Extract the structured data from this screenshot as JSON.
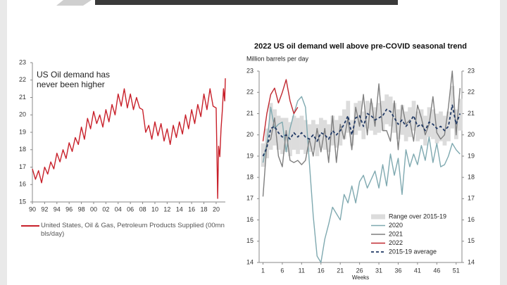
{
  "chart_data": [
    {
      "type": "line",
      "annotation": "US Oil demand has never been higher",
      "x": [
        1990,
        1990.5,
        1991,
        1991.5,
        1992,
        1992.5,
        1993,
        1993.5,
        1994,
        1994.5,
        1995,
        1995.5,
        1996,
        1996.5,
        1997,
        1997.5,
        1998,
        1998.5,
        1999,
        1999.5,
        2000,
        2000.5,
        2001,
        2001.5,
        2002,
        2002.5,
        2003,
        2003.5,
        2004,
        2004.5,
        2005,
        2005.5,
        2006,
        2006.5,
        2007,
        2007.5,
        2008,
        2008.5,
        2009,
        2009.5,
        2010,
        2010.5,
        2011,
        2011.5,
        2012,
        2012.5,
        2013,
        2013.5,
        2014,
        2014.5,
        2015,
        2015.5,
        2016,
        2016.5,
        2017,
        2017.5,
        2018,
        2018.5,
        2019,
        2019.5,
        2020,
        2020.25,
        2020.4,
        2020.6,
        2020.8,
        2021,
        2021.2,
        2021.4,
        2021.5
      ],
      "series": [
        {
          "name": "United States, Oil & Gas, Petroleum Products Supplied (00mn bls/day)",
          "color": "#c8202a",
          "values": [
            16.9,
            16.3,
            16.8,
            16.1,
            17.0,
            16.6,
            17.3,
            16.9,
            17.8,
            17.3,
            18.0,
            17.5,
            18.4,
            17.9,
            18.7,
            18.3,
            19.3,
            18.6,
            19.8,
            19.2,
            20.2,
            19.5,
            20.0,
            19.3,
            20.3,
            19.6,
            20.6,
            20.0,
            21.2,
            20.5,
            21.5,
            20.4,
            21.2,
            20.3,
            21.0,
            20.4,
            20.3,
            19.0,
            19.4,
            18.6,
            19.6,
            18.8,
            19.5,
            18.5,
            19.2,
            18.3,
            19.4,
            18.7,
            19.6,
            18.9,
            20.0,
            19.2,
            20.3,
            19.5,
            20.6,
            19.9,
            21.2,
            20.3,
            21.5,
            20.5,
            20.4,
            15.2,
            18.2,
            17.6,
            19.2,
            20.2,
            21.5,
            20.8,
            22.1
          ]
        }
      ],
      "xlim": [
        1990,
        2021.5
      ],
      "xticks": [
        {
          "value": 1990,
          "label": "90"
        },
        {
          "value": 1992,
          "label": "92"
        },
        {
          "value": 1994,
          "label": "94"
        },
        {
          "value": 1996,
          "label": "96"
        },
        {
          "value": 1998,
          "label": "98"
        },
        {
          "value": 2000,
          "label": "00"
        },
        {
          "value": 2002,
          "label": "02"
        },
        {
          "value": 2004,
          "label": "04"
        },
        {
          "value": 2006,
          "label": "06"
        },
        {
          "value": 2008,
          "label": "08"
        },
        {
          "value": 2010,
          "label": "10"
        },
        {
          "value": 2012,
          "label": "12"
        },
        {
          "value": 2014,
          "label": "14"
        },
        {
          "value": 2016,
          "label": "16"
        },
        {
          "value": 2018,
          "label": "18"
        },
        {
          "value": 2020,
          "label": "20"
        }
      ],
      "ylim": [
        15,
        23
      ],
      "yticks": [
        15,
        16,
        17,
        18,
        19,
        20,
        21,
        22,
        23
      ],
      "grid": false,
      "legend": "below"
    },
    {
      "type": "line",
      "title": "2022 US oil demand well above pre-COVID seasonal trend",
      "y_label": "Million barrels per day",
      "x_label": "Weeks",
      "x": [
        1,
        2,
        3,
        4,
        5,
        6,
        7,
        8,
        9,
        10,
        11,
        12,
        13,
        14,
        15,
        16,
        17,
        18,
        19,
        20,
        21,
        22,
        23,
        24,
        25,
        26,
        27,
        28,
        29,
        30,
        31,
        32,
        33,
        34,
        35,
        36,
        37,
        38,
        39,
        40,
        41,
        42,
        43,
        44,
        45,
        46,
        47,
        48,
        49,
        50,
        51,
        52
      ],
      "series": [
        {
          "name": "Range over 2015-19",
          "color": "#dcdcdc",
          "low": [
            18.5,
            18.9,
            19.3,
            19.5,
            19.3,
            19.1,
            19.2,
            19.0,
            19.3,
            19.1,
            19.3,
            19.1,
            19.2,
            19.3,
            19.0,
            19.4,
            19.3,
            19.2,
            19.5,
            19.4,
            19.5,
            19.8,
            20.1,
            19.5,
            20.0,
            20.2,
            19.8,
            20.3,
            20.2,
            20.0,
            20.1,
            20.2,
            20.5,
            20.4,
            20.1,
            19.8,
            20.0,
            19.7,
            19.9,
            20.2,
            19.7,
            19.8,
            19.5,
            19.9,
            19.8,
            19.6,
            19.7,
            19.5,
            19.7,
            20.3,
            19.8,
            20.2
          ],
          "high": [
            19.6,
            20.3,
            21.5,
            21.2,
            20.9,
            20.8,
            20.8,
            20.6,
            20.9,
            20.8,
            20.9,
            20.7,
            20.5,
            20.7,
            20.5,
            20.8,
            20.7,
            20.5,
            20.9,
            20.7,
            20.9,
            21.2,
            21.6,
            20.7,
            21.5,
            21.6,
            21.1,
            21.6,
            21.5,
            21.3,
            21.5,
            21.6,
            21.9,
            21.8,
            21.5,
            21.2,
            21.4,
            21.1,
            21.3,
            21.6,
            21.1,
            21.2,
            20.9,
            21.3,
            21.2,
            21.0,
            21.1,
            20.9,
            21.1,
            22.3,
            21.2,
            21.7
          ]
        },
        {
          "name": "2020",
          "color": "#7fa9b0",
          "values": [
            18.7,
            19.6,
            21.3,
            20.3,
            20.5,
            20.6,
            19.2,
            20.3,
            21.0,
            21.6,
            21.8,
            21.3,
            18.7,
            16.2,
            14.3,
            14.0,
            15.1,
            15.8,
            16.6,
            16.3,
            16.0,
            17.2,
            16.8,
            17.6,
            16.8,
            17.8,
            18.1,
            17.5,
            17.9,
            18.3,
            17.5,
            18.6,
            17.6,
            19.1,
            18.1,
            18.9,
            17.2,
            19.3,
            18.5,
            19.1,
            18.6,
            19.5,
            18.8,
            19.9,
            18.7,
            19.6,
            18.5,
            18.6,
            19.0,
            19.6,
            19.3,
            19.1
          ]
        },
        {
          "name": "2021",
          "color": "#7f7f7f",
          "values": [
            17.1,
            19.6,
            19.8,
            20.8,
            19.0,
            18.5,
            20.2,
            18.8,
            18.7,
            18.8,
            18.6,
            18.8,
            19.8,
            19.0,
            20.3,
            19.2,
            20.3,
            18.7,
            20.9,
            18.7,
            20.5,
            19.8,
            20.8,
            19.3,
            21.3,
            20.4,
            21.9,
            20.0,
            21.7,
            20.4,
            22.4,
            20.2,
            20.2,
            19.7,
            21.6,
            19.3,
            21.4,
            20.5,
            20.7,
            19.7,
            21.4,
            20.8,
            20.0,
            20.5,
            21.8,
            20.1,
            19.8,
            20.0,
            21.3,
            23.0,
            20.0,
            22.2
          ]
        },
        {
          "name": "2022",
          "color": "#c0282f",
          "values": [
            19.7,
            21.0,
            21.9,
            22.2,
            21.5,
            22.0,
            22.6,
            21.6,
            21.0,
            21.3,
            null,
            null,
            null,
            null,
            null,
            null,
            null,
            null,
            null,
            null,
            null,
            null,
            null,
            null,
            null,
            null,
            null,
            null,
            null,
            null,
            null,
            null,
            null,
            null,
            null,
            null,
            null,
            null,
            null,
            null,
            null,
            null,
            null,
            null,
            null,
            null,
            null,
            null,
            null,
            null,
            null,
            null
          ]
        },
        {
          "name": "2015-19 average",
          "color": "#1f3864",
          "dashed": true,
          "values": [
            19.0,
            19.4,
            20.3,
            20.4,
            20.1,
            19.9,
            20.0,
            19.8,
            20.1,
            19.9,
            20.1,
            19.9,
            19.8,
            20.0,
            19.7,
            20.1,
            20.0,
            19.8,
            20.2,
            20.0,
            20.2,
            20.5,
            20.9,
            20.0,
            20.8,
            20.9,
            20.4,
            21.0,
            20.9,
            20.7,
            20.8,
            20.9,
            21.2,
            21.1,
            20.8,
            20.5,
            20.7,
            20.4,
            20.6,
            20.9,
            20.4,
            20.5,
            20.2,
            20.6,
            20.5,
            20.3,
            20.4,
            20.2,
            20.4,
            21.4,
            20.5,
            21.0
          ]
        }
      ],
      "xlim": [
        0,
        52.5
      ],
      "xticks": [
        1,
        6,
        11,
        16,
        21,
        26,
        31,
        36,
        41,
        46,
        51
      ],
      "ylim": [
        14,
        23
      ],
      "yticks": [
        14,
        15,
        16,
        17,
        18,
        19,
        20,
        21,
        22,
        23
      ],
      "y2lim": [
        14,
        23
      ],
      "y2ticks": [
        14,
        15,
        16,
        17,
        18,
        19,
        20,
        21,
        22,
        23
      ],
      "grid": false,
      "legend": "lower right"
    }
  ]
}
